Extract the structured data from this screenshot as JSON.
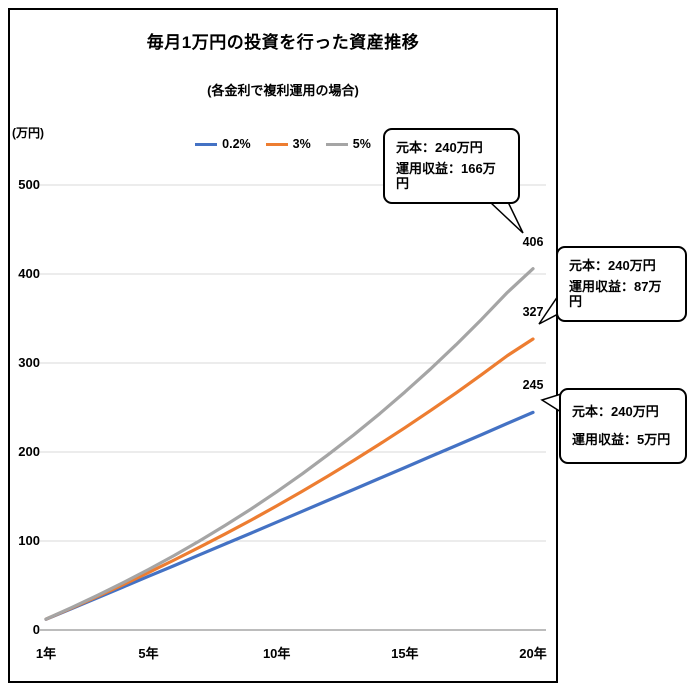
{
  "chart": {
    "title": "毎月1万円の投資を行った資産推移",
    "subtitle": "(各金利で複利運用の場合)",
    "y_unit_label": "(万円)"
  },
  "chart_data": {
    "type": "line",
    "title": "毎月1万円の投資を行った資産推移",
    "subtitle": "(各金利で複利運用の場合)",
    "ylabel": "(万円)",
    "xlabel": "",
    "x": [
      1,
      2,
      3,
      4,
      5,
      6,
      7,
      8,
      9,
      10,
      11,
      12,
      13,
      14,
      15,
      16,
      17,
      18,
      19,
      20
    ],
    "x_ticks": [
      1,
      5,
      10,
      15,
      20
    ],
    "x_tick_labels": [
      "1年",
      "5年",
      "10年",
      "15年",
      "20年"
    ],
    "ylim": [
      0,
      500
    ],
    "y_ticks": [
      0,
      100,
      200,
      300,
      400,
      500
    ],
    "grid": true,
    "legend_position": "top",
    "series": [
      {
        "name": "0.2%",
        "color": "#4472C4",
        "end_label": "245",
        "values": [
          12.0,
          24.1,
          36.1,
          48.2,
          60.3,
          72.4,
          84.6,
          96.7,
          108.9,
          121.1,
          133.4,
          145.6,
          157.9,
          170.2,
          182.5,
          194.9,
          207.2,
          219.6,
          232.1,
          244.5
        ]
      },
      {
        "name": "3%",
        "color": "#ED7D31",
        "end_label": "327",
        "values": [
          12.2,
          24.7,
          37.6,
          50.8,
          64.5,
          78.6,
          93.1,
          108.1,
          123.5,
          139.4,
          155.9,
          172.9,
          190.4,
          208.5,
          227.2,
          246.5,
          266.4,
          287.0,
          308.3,
          327.0
        ]
      },
      {
        "name": "5%",
        "color": "#A5A5A5",
        "end_label": "406",
        "values": [
          12.3,
          25.2,
          38.8,
          53.0,
          68.0,
          83.7,
          100.3,
          117.7,
          136.0,
          155.3,
          175.5,
          196.8,
          219.1,
          242.6,
          267.3,
          293.3,
          320.6,
          349.2,
          379.3,
          406.0
        ]
      }
    ]
  },
  "callouts": [
    {
      "line1": "元本：240万円",
      "line2": "運用収益：166万円"
    },
    {
      "line1": "元本：240万円",
      "line2": "運用収益：87万円"
    },
    {
      "line1": "元本：240万円",
      "line2": "運用収益：5万円"
    }
  ],
  "colors": {
    "grid": "#D9D9D9",
    "axis": "#A6A6A6",
    "border": "#000000",
    "text": "#000000",
    "background": "#FFFFFF"
  }
}
